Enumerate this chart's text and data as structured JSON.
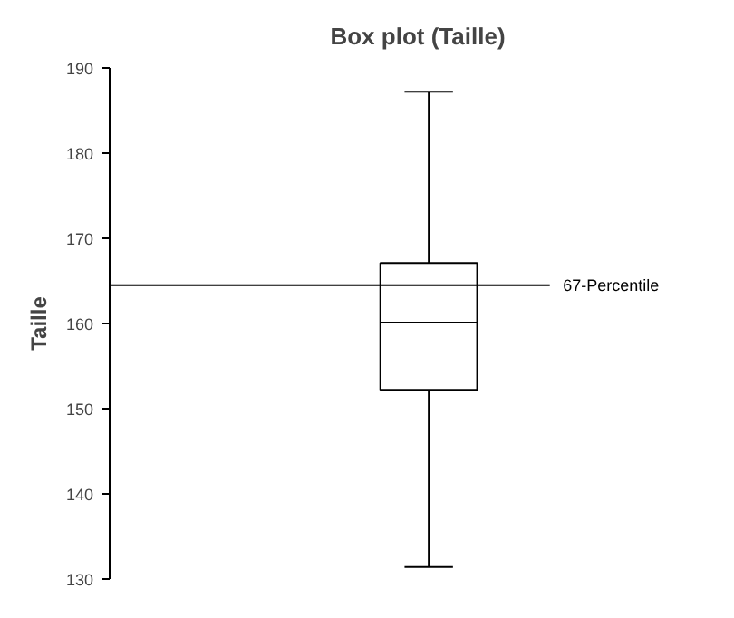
{
  "chart_data": {
    "type": "box",
    "title": "Box plot (Taille)",
    "ylabel": "Taille",
    "categories": [
      null
    ],
    "boxes": [
      {
        "low": 131.4,
        "q1": 152.2,
        "median": 160.1,
        "q3": 167.1,
        "high": 187.2
      }
    ],
    "ylim": [
      130,
      190
    ],
    "yticks": [
      130,
      140,
      150,
      160,
      170,
      180,
      190
    ],
    "grid": false,
    "tick_labels": "y",
    "ref_lines": [
      {
        "axis": "y",
        "value": 164.5,
        "label": "67-Percentile",
        "color": "#000000"
      }
    ]
  }
}
